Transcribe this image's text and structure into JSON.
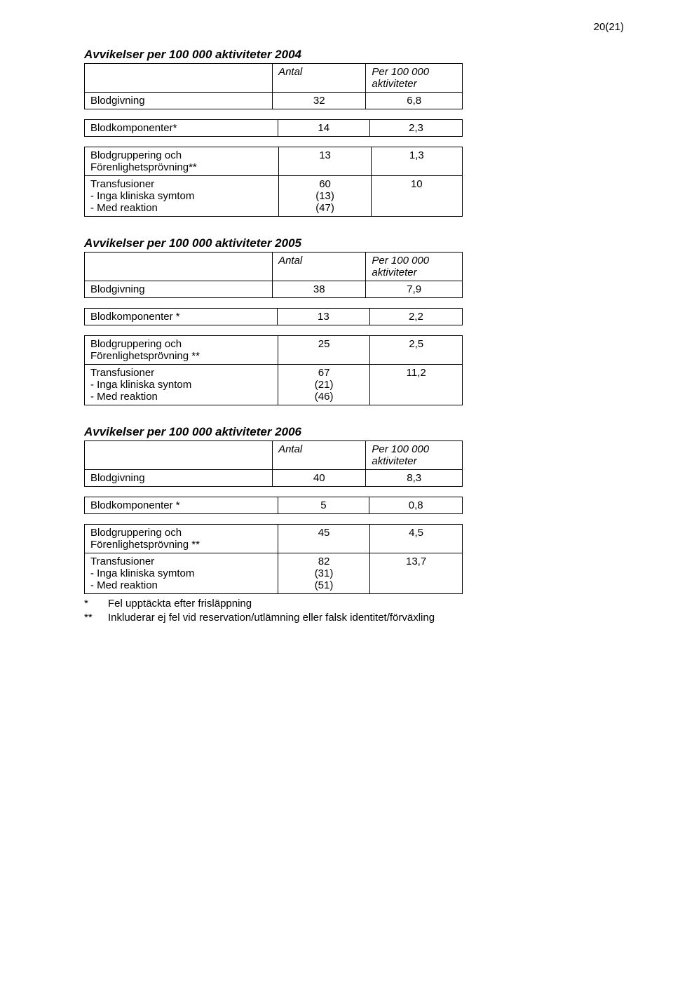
{
  "page_number": "20(21)",
  "col_headers": {
    "antal": "Antal",
    "per100k_line1": "Per 100 000",
    "per100k_line2": "aktiviteter"
  },
  "labels": {
    "blodgivning": "Blodgivning",
    "blodkomponenter_star": "Blodkomponenter*",
    "blodkomponenter_space_star": "Blodkomponenter *",
    "blodgruppering": "Blodgruppering och",
    "forenlighet_dstar": "Förenlighetsprövning**",
    "forenlighet_space_dstar": "Förenlighetsprövning **",
    "transfusioner": "Transfusioner",
    "inga_symtom": " - Inga kliniska symtom",
    "inga_syntom": " - Inga kliniska syntom",
    "med_reaktion": " - Med reaktion"
  },
  "section_2004": {
    "title": "Avvikelser per 100 000 aktiviteter 2004",
    "blodgivning": {
      "antal": "32",
      "rate": "6,8"
    },
    "blodkomponenter": {
      "antal": "14",
      "rate": "2,3"
    },
    "blodgruppering": {
      "antal": "13",
      "rate": "1,3"
    },
    "transfusioner": {
      "antal": "60",
      "sub1": "(13)",
      "sub2": "(47)",
      "rate": "10"
    }
  },
  "section_2005": {
    "title": "Avvikelser per 100 000 aktiviteter 2005",
    "blodgivning": {
      "antal": "38",
      "rate": "7,9"
    },
    "blodkomponenter": {
      "antal": "13",
      "rate": "2,2"
    },
    "blodgruppering": {
      "antal": "25",
      "rate": "2,5"
    },
    "transfusioner": {
      "antal": "67",
      "sub1": "(21)",
      "sub2": "(46)",
      "rate": "11,2"
    }
  },
  "section_2006": {
    "title": "Avvikelser per 100 000 aktiviteter 2006",
    "blodgivning": {
      "antal": "40",
      "rate": "8,3"
    },
    "blodkomponenter": {
      "antal": "5",
      "rate": "0,8"
    },
    "blodgruppering": {
      "antal": "45",
      "rate": "4,5"
    },
    "transfusioner": {
      "antal": "82",
      "sub1": "(31)",
      "sub2": "(51)",
      "rate": "13,7"
    }
  },
  "footnotes": {
    "f1_mark": "*",
    "f1_text": "Fel upptäckta efter frisläppning",
    "f2_mark": "**",
    "f2_text": "Inkluderar ej fel vid reservation/utlämning eller falsk identitet/förväxling"
  }
}
